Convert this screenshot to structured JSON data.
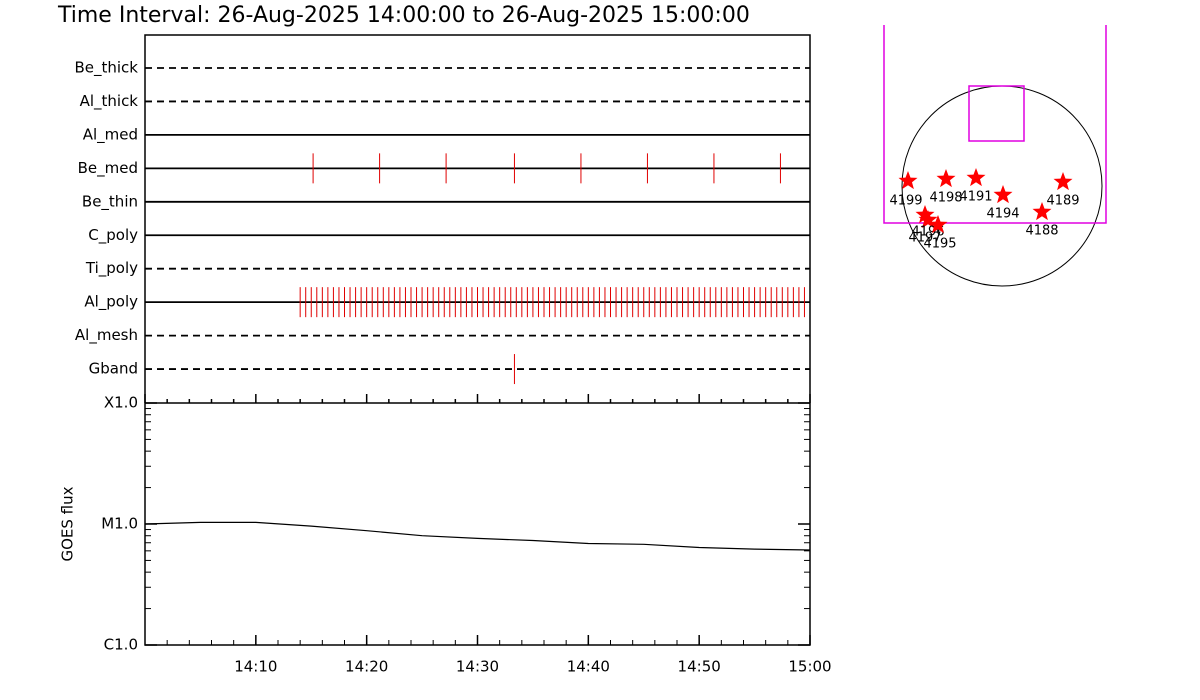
{
  "title": "Time Interval: 26-Aug-2025 14:00:00 to 26-Aug-2025 15:00:00",
  "chart_data": [
    {
      "type": "timeline",
      "categories": [
        "Be_thick",
        "Al_thick",
        "Al_med",
        "Be_med",
        "Be_thin",
        "C_poly",
        "Ti_poly",
        "Al_poly",
        "Al_mesh",
        "Gband"
      ],
      "line_styles": [
        "dashed",
        "dashed",
        "solid",
        "solid",
        "solid",
        "solid",
        "dashed",
        "solid",
        "dashed",
        "dashed"
      ],
      "color": "#e00000",
      "xlim": [
        "14:00",
        "15:00"
      ],
      "events": [
        [],
        [],
        [],
        [
          "14:15:10",
          "14:21:10",
          "14:27:10",
          "14:33:20",
          "14:39:20",
          "14:45:20",
          "14:51:20",
          "14:57:20"
        ],
        [],
        [],
        [],
        [
          "14:14:00",
          "14:14:30",
          "14:15:00",
          "14:15:30",
          "14:16:00",
          "14:16:30",
          "14:17:00",
          "14:17:30",
          "14:18:00",
          "14:18:30",
          "14:19:00",
          "14:19:30",
          "14:20:00",
          "14:20:30",
          "14:21:00",
          "14:21:30",
          "14:22:00",
          "14:22:30",
          "14:23:00",
          "14:23:30",
          "14:24:00",
          "14:24:30",
          "14:25:00",
          "14:25:30",
          "14:26:00",
          "14:26:30",
          "14:27:00",
          "14:27:30",
          "14:28:00",
          "14:28:30",
          "14:29:00",
          "14:29:30",
          "14:30:00",
          "14:30:30",
          "14:31:00",
          "14:31:30",
          "14:32:00",
          "14:32:30",
          "14:33:00",
          "14:33:30",
          "14:34:00",
          "14:34:30",
          "14:35:00",
          "14:35:30",
          "14:36:00",
          "14:36:30",
          "14:37:00",
          "14:37:30",
          "14:38:00",
          "14:38:30",
          "14:39:00",
          "14:39:30",
          "14:40:00",
          "14:40:30",
          "14:41:00",
          "14:41:30",
          "14:42:00",
          "14:42:30",
          "14:43:00",
          "14:43:30",
          "14:44:00",
          "14:44:30",
          "14:45:00",
          "14:45:30",
          "14:46:00",
          "14:46:30",
          "14:47:00",
          "14:47:30",
          "14:48:00",
          "14:48:30",
          "14:49:00",
          "14:49:30",
          "14:50:00",
          "14:50:30",
          "14:51:00",
          "14:51:30",
          "14:52:00",
          "14:52:30",
          "14:53:00",
          "14:53:30",
          "14:54:00",
          "14:54:30",
          "14:55:00",
          "14:55:30",
          "14:56:00",
          "14:56:30",
          "14:57:00",
          "14:57:30",
          "14:58:00",
          "14:58:30",
          "14:59:00",
          "14:59:30"
        ],
        [],
        [
          "14:33:20"
        ]
      ]
    },
    {
      "type": "line",
      "ylabel": "GOES flux",
      "x": [
        "14:00",
        "14:05",
        "14:10",
        "14:15",
        "14:20",
        "14:25",
        "14:30",
        "14:35",
        "14:40",
        "14:45",
        "14:50",
        "14:55",
        "15:00"
      ],
      "values": [
        1e-05,
        1.03e-05,
        1.03e-05,
        9.6e-06,
        8.8e-06,
        8e-06,
        7.6e-06,
        7.3e-06,
        6.9e-06,
        6.8e-06,
        6.4e-06,
        6.2e-06,
        6.1e-06
      ],
      "color": "#000000",
      "xlim": [
        "14:00",
        "15:00"
      ],
      "xticks": [
        "14:10",
        "14:20",
        "14:30",
        "14:40",
        "14:50",
        "15:00"
      ],
      "ylim": [
        1e-06,
        0.0001
      ],
      "yticks": [
        {
          "value": 1e-06,
          "label": "C1.0"
        },
        {
          "value": 1e-05,
          "label": "M1.0"
        },
        {
          "value": 0.0001,
          "label": "X1.0"
        }
      ],
      "log_scale": true
    }
  ],
  "map": {
    "regions": [
      "4199",
      "4198",
      "4191",
      "4194",
      "4189",
      "4188",
      "4197",
      "4196",
      "4195"
    ]
  }
}
